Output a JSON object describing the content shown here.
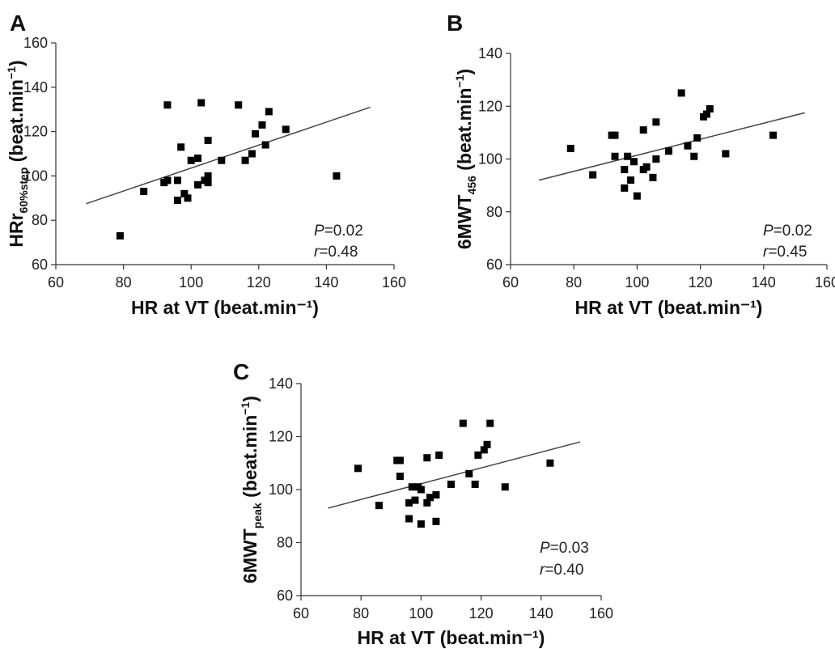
{
  "chart_data": [
    {
      "type": "scatter",
      "panel": "A",
      "xlabel": "HR at VT (beat.min⁻¹)",
      "ylabel_main": "HRr",
      "ylabel_sub": "60%step",
      "ylabel_rest": " (beat.min",
      "ylabel_sup": "−1",
      "ylabel_close": ")",
      "xlim": [
        60,
        160
      ],
      "ylim": [
        60,
        160
      ],
      "xticks": [
        "60",
        "80",
        "100",
        "120",
        "140",
        "160"
      ],
      "yticks": [
        "60",
        "80",
        "100",
        "120",
        "140",
        "160"
      ],
      "stat_p_label": "P",
      "stat_p_value": "=0.02",
      "stat_r_label": "r",
      "stat_r_value": "=0.48",
      "trendline": [
        [
          69,
          87.5
        ],
        [
          153,
          131
        ]
      ],
      "points": [
        [
          79,
          73
        ],
        [
          86,
          93
        ],
        [
          92,
          97
        ],
        [
          93,
          98
        ],
        [
          93,
          132
        ],
        [
          96,
          89
        ],
        [
          96,
          98
        ],
        [
          97,
          113
        ],
        [
          98,
          92
        ],
        [
          99,
          90
        ],
        [
          100,
          107
        ],
        [
          102,
          96
        ],
        [
          102,
          108
        ],
        [
          103,
          133
        ],
        [
          104,
          98
        ],
        [
          105,
          97
        ],
        [
          105,
          100
        ],
        [
          105,
          116
        ],
        [
          109,
          107
        ],
        [
          114,
          132
        ],
        [
          116,
          107
        ],
        [
          118,
          110
        ],
        [
          119,
          119
        ],
        [
          121,
          123
        ],
        [
          122,
          114
        ],
        [
          123,
          129
        ],
        [
          128,
          121
        ],
        [
          143,
          100
        ]
      ]
    },
    {
      "type": "scatter",
      "panel": "B",
      "xlabel": "HR at VT (beat.min⁻¹)",
      "ylabel_main": "6MWT",
      "ylabel_sub": "456",
      "ylabel_rest": " (beat.min",
      "ylabel_sup": "−1",
      "ylabel_close": ")",
      "xlim": [
        60,
        160
      ],
      "ylim": [
        60,
        140
      ],
      "xticks": [
        "60",
        "80",
        "100",
        "120",
        "140",
        "160"
      ],
      "yticks": [
        "60",
        "80",
        "100",
        "120",
        "140"
      ],
      "stat_p_label": "P",
      "stat_p_value": "=0.02",
      "stat_r_label": "r",
      "stat_r_value": "=0.45",
      "trendline": [
        [
          69,
          92
        ],
        [
          153,
          117.5
        ]
      ],
      "points": [
        [
          79,
          104
        ],
        [
          86,
          94
        ],
        [
          92,
          109
        ],
        [
          93,
          109
        ],
        [
          93,
          101
        ],
        [
          96,
          89
        ],
        [
          96,
          96
        ],
        [
          97,
          101
        ],
        [
          98,
          92
        ],
        [
          99,
          99
        ],
        [
          100,
          86
        ],
        [
          102,
          96
        ],
        [
          102,
          111
        ],
        [
          103,
          97
        ],
        [
          105,
          93
        ],
        [
          106,
          114
        ],
        [
          106,
          100
        ],
        [
          110,
          103
        ],
        [
          114,
          125
        ],
        [
          116,
          105
        ],
        [
          118,
          101
        ],
        [
          119,
          108
        ],
        [
          121,
          116
        ],
        [
          122,
          117
        ],
        [
          123,
          119
        ],
        [
          128,
          102
        ],
        [
          143,
          109
        ]
      ]
    },
    {
      "type": "scatter",
      "panel": "C",
      "xlabel": "HR at VT (beat.min⁻¹)",
      "ylabel_main": "6MWT",
      "ylabel_sub": "peak",
      "ylabel_rest": " (beat.min",
      "ylabel_sup": "−1",
      "ylabel_close": ")",
      "xlim": [
        60,
        160
      ],
      "ylim": [
        60,
        140
      ],
      "xticks": [
        "60",
        "80",
        "100",
        "120",
        "140",
        "160"
      ],
      "yticks": [
        "60",
        "80",
        "100",
        "120",
        "140"
      ],
      "stat_p_label": "P",
      "stat_p_value": "=0.03",
      "stat_r_label": "r",
      "stat_r_value": "=0.40",
      "trendline": [
        [
          69,
          93
        ],
        [
          153,
          118
        ]
      ],
      "points": [
        [
          79,
          108
        ],
        [
          86,
          94
        ],
        [
          92,
          111
        ],
        [
          93,
          111
        ],
        [
          93,
          105
        ],
        [
          96,
          95
        ],
        [
          96,
          89
        ],
        [
          97,
          101
        ],
        [
          98,
          96
        ],
        [
          99,
          101
        ],
        [
          100,
          87
        ],
        [
          100,
          100
        ],
        [
          102,
          95
        ],
        [
          102,
          112
        ],
        [
          103,
          97
        ],
        [
          105,
          88
        ],
        [
          105,
          98
        ],
        [
          106,
          113
        ],
        [
          110,
          102
        ],
        [
          114,
          125
        ],
        [
          116,
          106
        ],
        [
          118,
          102
        ],
        [
          119,
          113
        ],
        [
          121,
          115
        ],
        [
          122,
          117
        ],
        [
          123,
          125
        ],
        [
          128,
          101
        ],
        [
          143,
          110
        ]
      ]
    }
  ]
}
